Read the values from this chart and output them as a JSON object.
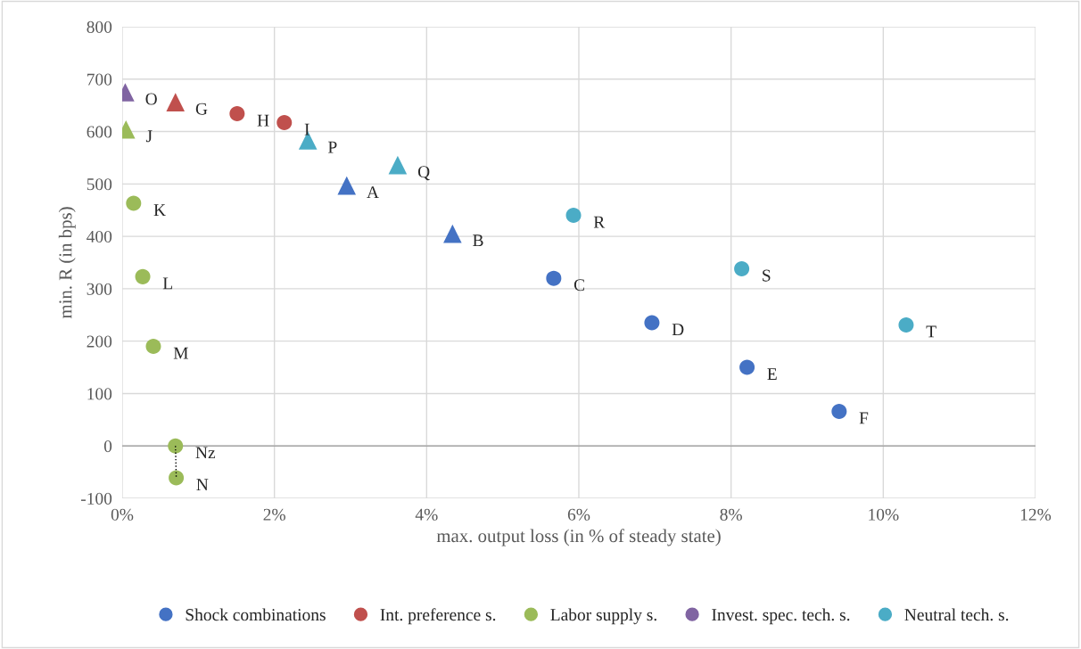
{
  "chart_data": {
    "type": "scatter",
    "xlabel": "max. output loss (in % of steady state)",
    "ylabel": "min. R (in bps)",
    "xlim": [
      0,
      12
    ],
    "ylim": [
      -100,
      800
    ],
    "xticks": [
      {
        "value": 0,
        "label": "0%"
      },
      {
        "value": 2,
        "label": "2%"
      },
      {
        "value": 4,
        "label": "4%"
      },
      {
        "value": 6,
        "label": "6%"
      },
      {
        "value": 8,
        "label": "8%"
      },
      {
        "value": 10,
        "label": "10%"
      },
      {
        "value": 12,
        "label": "12%"
      }
    ],
    "yticks": [
      -100,
      0,
      100,
      200,
      300,
      400,
      500,
      600,
      700,
      800
    ],
    "grid": true,
    "legend": "bottom",
    "ref_lines": [
      {
        "axis": "y",
        "value": 0,
        "color": "#a6a6a6"
      }
    ],
    "series": [
      {
        "name": "Shock combinations",
        "color": "#4472c4",
        "marker": "circle",
        "x": [
          5.67,
          6.96,
          8.21,
          9.42
        ],
        "values": [
          320,
          235,
          150,
          66
        ]
      },
      {
        "name": "Int. preference s.",
        "color": "#c0504d",
        "marker": "circle",
        "x": [
          1.51,
          2.13
        ],
        "values": [
          634,
          617
        ]
      },
      {
        "name": "Labor supply s.",
        "color": "#9bbb59",
        "marker": "circle",
        "x": [
          0.15,
          0.27,
          0.41,
          0.7,
          0.71
        ],
        "values": [
          463,
          323,
          190,
          0,
          -61
        ]
      },
      {
        "name": "Invest. spec. tech. s.",
        "color": "#8064a2",
        "marker": "triangle",
        "x": [
          0.04
        ],
        "values": [
          675
        ]
      },
      {
        "name": "Neutral tech. s.",
        "color": "#4bacc6",
        "marker": "circle",
        "x": [
          5.93,
          8.14,
          10.3
        ],
        "values": [
          440,
          338,
          231
        ]
      },
      {
        "color": "#4472c4",
        "marker": "triangle",
        "x": [
          2.95,
          4.34
        ],
        "values": [
          497,
          405
        ]
      },
      {
        "color": "#c0504d",
        "marker": "triangle",
        "x": [
          0.7
        ],
        "values": [
          656
        ]
      },
      {
        "color": "#9bbb59",
        "marker": "triangle",
        "x": [
          0.05
        ],
        "values": [
          604
        ]
      },
      {
        "color": "#4bacc6",
        "marker": "triangle",
        "x": [
          2.44,
          3.62
        ],
        "values": [
          583,
          536
        ]
      },
      {
        "type": "line",
        "color": "#000000",
        "line_style": "dotted",
        "marker": "none",
        "x": [
          0.7,
          0.71
        ],
        "values": [
          0,
          -61
        ]
      }
    ],
    "annotations": [
      {
        "text": "A",
        "x": 2.95,
        "y": 497
      },
      {
        "text": "B",
        "x": 4.34,
        "y": 405
      },
      {
        "text": "C",
        "x": 5.67,
        "y": 320
      },
      {
        "text": "D",
        "x": 6.96,
        "y": 235
      },
      {
        "text": "E",
        "x": 8.21,
        "y": 150
      },
      {
        "text": "F",
        "x": 9.42,
        "y": 66
      },
      {
        "text": "G",
        "x": 0.7,
        "y": 656
      },
      {
        "text": "H",
        "x": 1.51,
        "y": 634
      },
      {
        "text": "I",
        "x": 2.13,
        "y": 617
      },
      {
        "text": "J",
        "x": 0.05,
        "y": 604
      },
      {
        "text": "K",
        "x": 0.15,
        "y": 463
      },
      {
        "text": "L",
        "x": 0.27,
        "y": 323
      },
      {
        "text": "M",
        "x": 0.41,
        "y": 190
      },
      {
        "text": "Nz",
        "x": 0.7,
        "y": 0
      },
      {
        "text": "N",
        "x": 0.71,
        "y": -61
      },
      {
        "text": "O",
        "x": 0.04,
        "y": 675
      },
      {
        "text": "P",
        "x": 2.44,
        "y": 583
      },
      {
        "text": "Q",
        "x": 3.62,
        "y": 536
      },
      {
        "text": "R",
        "x": 5.93,
        "y": 440
      },
      {
        "text": "S",
        "x": 8.14,
        "y": 338
      },
      {
        "text": "T",
        "x": 10.3,
        "y": 231
      }
    ]
  }
}
